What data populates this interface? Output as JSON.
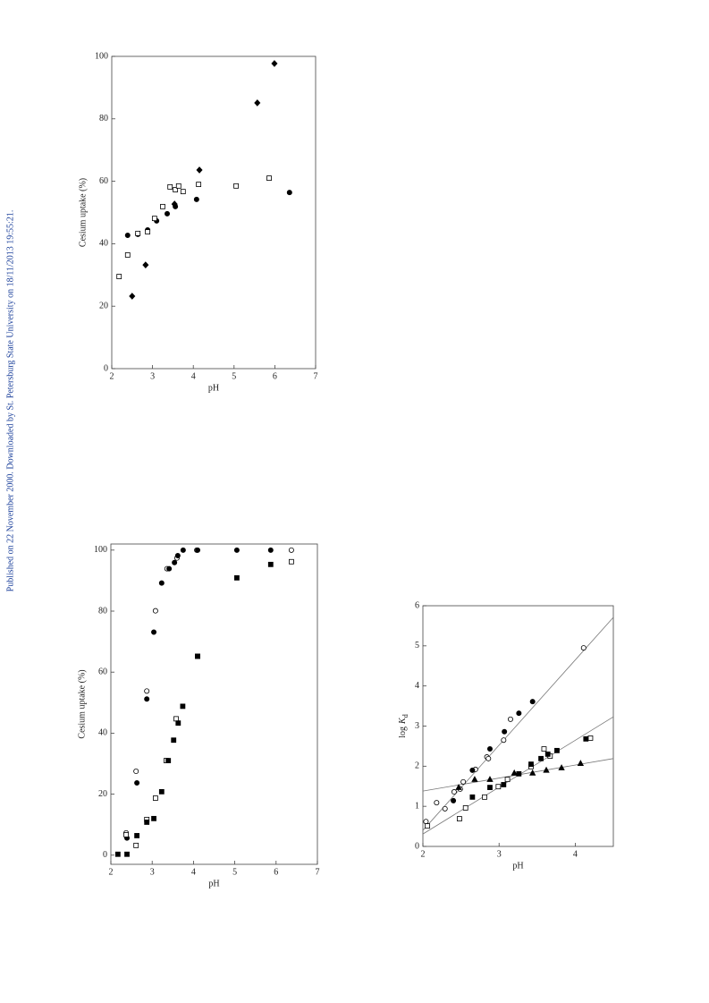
{
  "sidebar": "Published on 22 November 2000. Downloaded by St. Petersburg State University on 18/11/2013 19:55:21.",
  "chart_data": [
    {
      "type": "scatter",
      "x_label": "pH",
      "y_label": "Cesium uptake (%)",
      "xlim": [
        2,
        7
      ],
      "ylim": [
        0,
        100
      ],
      "xticks": [
        2,
        3,
        4,
        5,
        6,
        7
      ],
      "yticks": [
        0,
        20,
        40,
        60,
        80,
        100
      ],
      "series": [
        {
          "marker": "circle",
          "filled": true,
          "color": "#000000",
          "x": [
            2.39,
            2.64,
            2.88,
            3.1,
            3.36,
            3.56,
            4.08,
            6.36
          ],
          "values": [
            42.7,
            43.0,
            44.4,
            47.3,
            49.6,
            51.9,
            54.2,
            56.4
          ]
        },
        {
          "marker": "square",
          "filled": false,
          "color": "#000000",
          "x": [
            2.18,
            2.39,
            2.64,
            2.88,
            3.05,
            3.25,
            3.43,
            3.56,
            3.64,
            3.75,
            4.13,
            5.05,
            5.86
          ],
          "values": [
            29.5,
            36.4,
            43.3,
            43.8,
            48.1,
            51.9,
            58.2,
            57.3,
            58.5,
            56.7,
            59.0,
            58.5,
            61.0
          ]
        },
        {
          "marker": "diamond",
          "filled": true,
          "color": "#000000",
          "x": [
            2.5,
            2.83,
            3.54,
            4.15,
            5.57,
            5.99
          ],
          "values": [
            23.2,
            33.2,
            52.7,
            63.6,
            85.1,
            97.7
          ]
        }
      ]
    },
    {
      "type": "scatter",
      "x_label": "pH",
      "y_label": "Cesium uptake (%)",
      "xlim": [
        2,
        7
      ],
      "ylim": [
        -3,
        102
      ],
      "xticks": [
        2,
        3,
        4,
        5,
        6,
        7
      ],
      "yticks": [
        0,
        20,
        40,
        60,
        80,
        100
      ],
      "series": [
        {
          "marker": "circle",
          "filled": false,
          "color": "#000000",
          "x": [
            2.37,
            2.61,
            2.87,
            3.08,
            3.36,
            3.6,
            4.08,
            6.37
          ],
          "values": [
            7.3,
            27.5,
            53.8,
            80.1,
            93.9,
            97.4,
            100,
            100
          ]
        },
        {
          "marker": "circle",
          "filled": true,
          "color": "#000000",
          "x": [
            2.39,
            2.63,
            2.87,
            3.04,
            3.23,
            3.41,
            3.54,
            3.62,
            3.75,
            4.1,
            5.05,
            5.87
          ],
          "values": [
            5.6,
            23.7,
            51.2,
            73.1,
            89.2,
            93.9,
            95.9,
            98.2,
            100,
            100,
            100,
            100
          ]
        },
        {
          "marker": "square",
          "filled": false,
          "color": "#000000",
          "x": [
            2.37,
            2.61,
            2.87,
            3.08,
            3.34,
            3.58,
            4.1,
            6.37
          ],
          "values": [
            6.7,
            3.2,
            11.7,
            18.7,
            31.0,
            44.7,
            65.2,
            96.2
          ]
        },
        {
          "marker": "square",
          "filled": true,
          "color": "#000000",
          "x": [
            2.17,
            2.39,
            2.63,
            2.87,
            3.04,
            3.23,
            3.39,
            3.52,
            3.63,
            3.74,
            4.1,
            5.05,
            5.87
          ],
          "values": [
            0.3,
            0.3,
            6.4,
            10.8,
            12.0,
            20.8,
            31.0,
            37.7,
            43.3,
            48.8,
            65.2,
            90.9,
            95.3
          ]
        }
      ]
    },
    {
      "type": "scatter",
      "x_label": "pH",
      "y_label": {
        "prefix": "log",
        "symbol": "K",
        "subscript": "d"
      },
      "xlim": [
        2,
        4.5
      ],
      "ylim": [
        0,
        6
      ],
      "xticks": [
        2,
        3,
        4
      ],
      "yticks": [
        0,
        1,
        2,
        3,
        4,
        5,
        6
      ],
      "series": [
        {
          "marker": "circle",
          "filled": false,
          "color": "#000000",
          "x": [
            2.04,
            2.18,
            2.29,
            2.41,
            2.49,
            2.53,
            2.69,
            2.84,
            2.86,
            3.06,
            3.15,
            4.11
          ],
          "values": [
            0.62,
            1.09,
            0.94,
            1.36,
            1.43,
            1.61,
            1.92,
            2.23,
            2.19,
            2.65,
            3.17,
            4.95
          ]
        },
        {
          "marker": "circle",
          "filled": true,
          "color": "#000000",
          "x": [
            2.4,
            2.65,
            2.88,
            3.07,
            3.26,
            3.44
          ],
          "values": [
            1.14,
            1.9,
            2.43,
            2.86,
            3.32,
            3.61
          ]
        },
        {
          "marker": "square",
          "filled": false,
          "color": "#000000",
          "x": [
            2.06,
            2.48,
            2.56,
            2.81,
            2.99,
            3.11,
            3.42,
            3.59,
            3.67,
            4.2
          ],
          "values": [
            0.51,
            0.69,
            0.96,
            1.23,
            1.49,
            1.67,
            1.99,
            2.43,
            2.25,
            2.7
          ]
        },
        {
          "marker": "square",
          "filled": true,
          "color": "#000000",
          "x": [
            2.65,
            2.88,
            3.06,
            3.26,
            3.42,
            3.55,
            3.64,
            3.76,
            4.14
          ],
          "values": [
            1.23,
            1.47,
            1.54,
            1.81,
            2.05,
            2.19,
            2.3,
            2.39,
            2.68
          ]
        },
        {
          "marker": "triangle",
          "filled": true,
          "color": "#000000",
          "x": [
            2.47,
            2.68,
            2.88,
            3.2,
            3.44,
            3.62,
            3.82,
            4.07
          ],
          "values": [
            1.47,
            1.67,
            1.67,
            1.83,
            1.83,
            1.9,
            1.96,
            2.07
          ]
        }
      ],
      "fit_lines": [
        {
          "color": "#777777",
          "x": [
            2,
            4.5
          ],
          "values": [
            0.4,
            5.71
          ]
        },
        {
          "color": "#777777",
          "x": [
            2,
            4.5
          ],
          "values": [
            0.31,
            3.23
          ]
        },
        {
          "color": "#777777",
          "x": [
            2,
            4.5
          ],
          "values": [
            1.38,
            2.19
          ]
        }
      ]
    }
  ]
}
